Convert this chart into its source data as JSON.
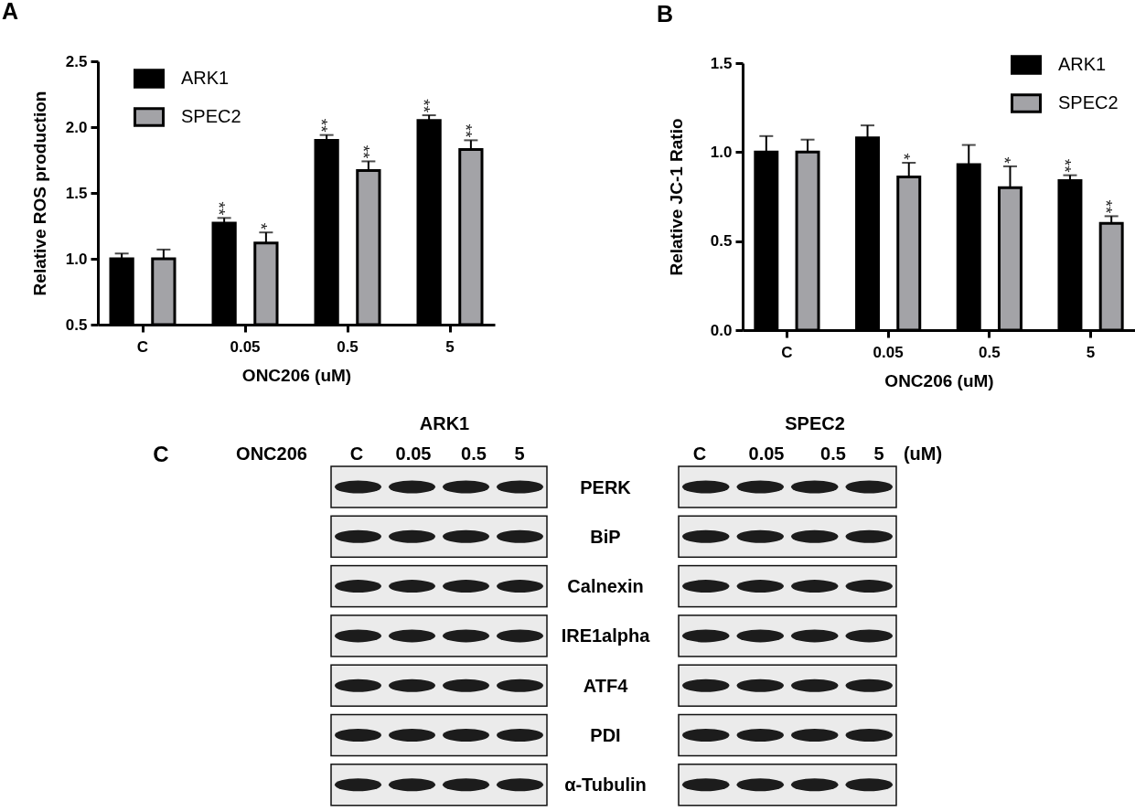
{
  "chart_data": [
    {
      "type": "bar",
      "title": "A",
      "xlabel": "ONC206 (uM)",
      "ylabel": "Relative ROS production",
      "categories": [
        "C",
        "0.05",
        "0.5",
        "5"
      ],
      "series": [
        {
          "name": "ARK1",
          "color": "#000000",
          "values": [
            1,
            1.27,
            1.9,
            2.05
          ],
          "errors": [
            [
              1,
              1.04
            ],
            [
              1.27,
              1.31
            ],
            [
              1.9,
              1.94
            ],
            [
              2.05,
              2.09
            ]
          ],
          "value_labels": [
            null,
            "**",
            "**",
            "**"
          ]
        },
        {
          "name": "SPEC2",
          "color": "#a3a3a7",
          "values": [
            1,
            1.12,
            1.67,
            1.83
          ],
          "errors": [
            [
              1,
              1.07
            ],
            [
              1.12,
              1.2
            ],
            [
              1.67,
              1.74
            ],
            [
              1.83,
              1.9
            ]
          ],
          "value_labels": [
            null,
            "*",
            "**",
            "**"
          ]
        }
      ],
      "ylim": [
        0.5,
        2.5
      ],
      "yticks": [
        0.5,
        {
          "value": 1,
          "label": "1.0"
        },
        1.5,
        {
          "value": 2,
          "label": "2.0"
        },
        2.5
      ],
      "legend": "top left"
    },
    {
      "type": "bar",
      "title": "B",
      "xlabel": "ONC206 (uM)",
      "ylabel": "Relative JC-1 Ratio",
      "categories": [
        "C",
        "0.05",
        "0.5",
        "5"
      ],
      "series": [
        {
          "name": "ARK1",
          "color": "#000000",
          "values": [
            1,
            1.08,
            0.93,
            0.84
          ],
          "errors": [
            [
              1,
              1.09
            ],
            [
              1.08,
              1.15
            ],
            [
              0.93,
              1.04
            ],
            [
              0.84,
              0.87
            ]
          ],
          "value_labels": [
            null,
            null,
            null,
            "**"
          ]
        },
        {
          "name": "SPEC2",
          "color": "#a3a3a7",
          "values": [
            1,
            0.86,
            0.8,
            0.6
          ],
          "errors": [
            [
              1,
              1.07
            ],
            [
              0.86,
              0.94
            ],
            [
              0.8,
              0.92
            ],
            [
              0.6,
              0.64
            ]
          ],
          "value_labels": [
            null,
            "*",
            "*",
            "**"
          ]
        }
      ],
      "ylim": [
        0,
        1.5
      ],
      "yticks": [
        {
          "value": 0,
          "label": "0.0"
        },
        0.5,
        {
          "value": 1,
          "label": "1.0"
        },
        1.5
      ],
      "legend": "top right"
    },
    {
      "type": "other",
      "title": "C",
      "annotations": [
        "ONC206",
        "ARK1",
        "C",
        "0.05",
        "0.5",
        "5",
        "SPEC2",
        "C",
        "0.05",
        "0.5",
        "5",
        "(uM)",
        "PERK",
        "BiP",
        "Calnexin",
        "IRE1alpha",
        "ATF4",
        "PDI",
        "α-Tubulin"
      ]
    }
  ]
}
